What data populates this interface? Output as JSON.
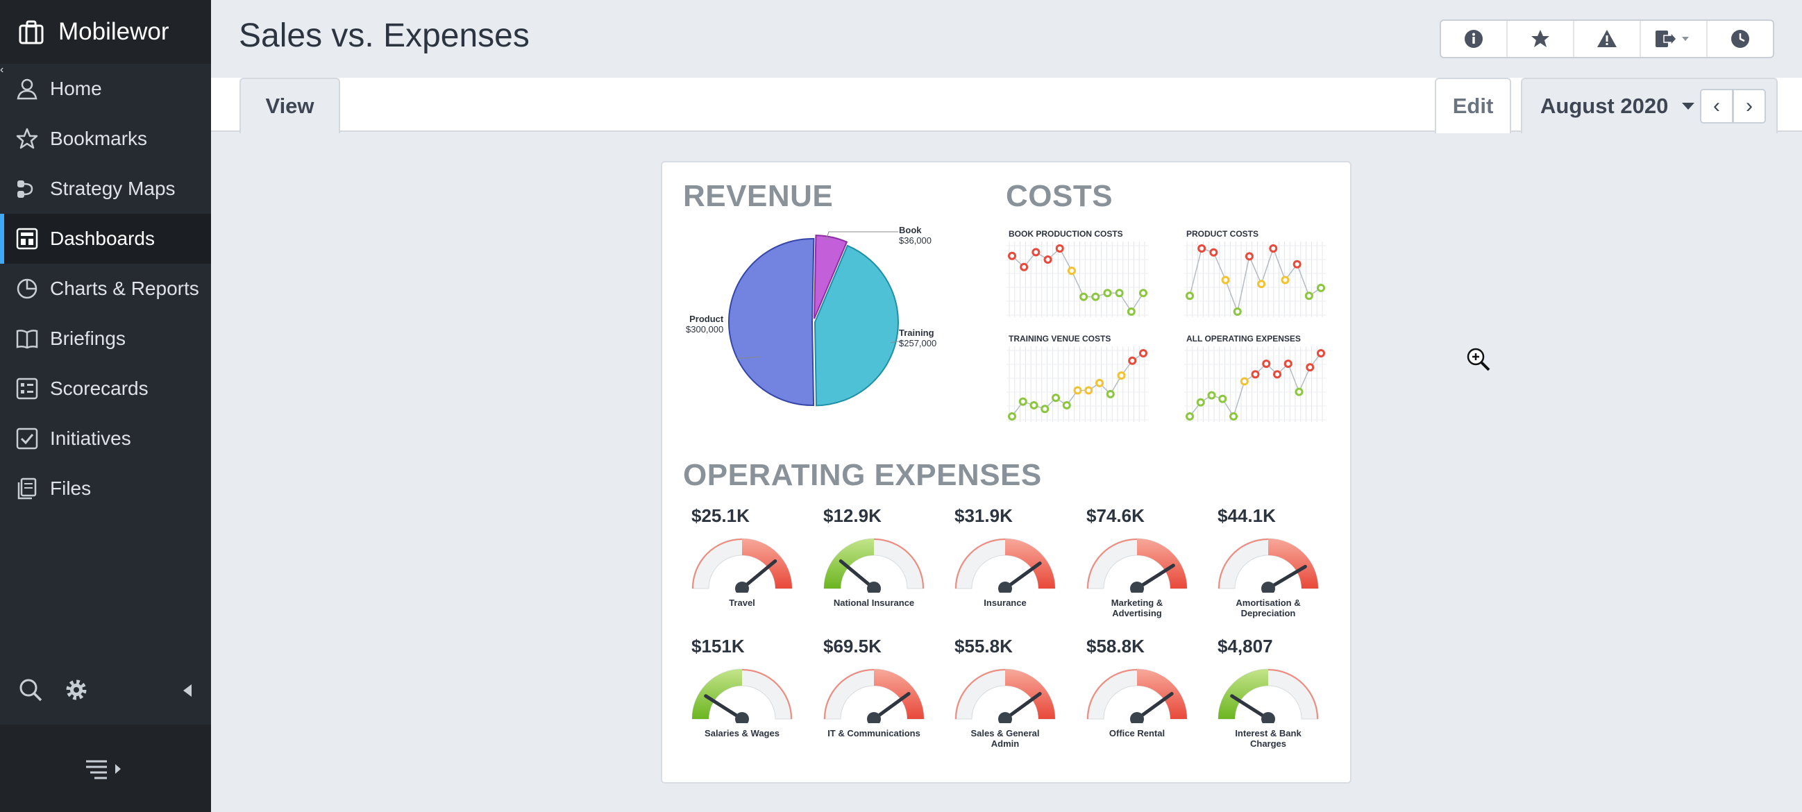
{
  "app": {
    "brand": "Mobilewor",
    "page_title": "Sales vs. Expenses"
  },
  "sidebar": {
    "items": [
      {
        "label": "Home",
        "icon": "user-icon"
      },
      {
        "label": "Bookmarks",
        "icon": "star-icon"
      },
      {
        "label": "Strategy Maps",
        "icon": "strategy-map-icon"
      },
      {
        "label": "Dashboards",
        "icon": "dashboard-icon",
        "active": true
      },
      {
        "label": "Charts & Reports",
        "icon": "pie-chart-icon"
      },
      {
        "label": "Briefings",
        "icon": "book-icon"
      },
      {
        "label": "Scorecards",
        "icon": "scorecard-icon"
      },
      {
        "label": "Initiatives",
        "icon": "checkbox-icon"
      },
      {
        "label": "Files",
        "icon": "files-icon"
      }
    ]
  },
  "tabs": {
    "view": "View",
    "edit": "Edit",
    "period": "August 2020"
  },
  "colors": {
    "sidebar_bg": "#262b31",
    "active_accent": "#3fa9f5",
    "pie_product": "#7283e0",
    "pie_training": "#4fc1d6",
    "pie_book": "#c35fd8",
    "gauge_red": "#e8493a",
    "gauge_green": "#7cc22a"
  },
  "dashboard": {
    "revenue_title": "REVENUE",
    "costs_title": "COSTS",
    "opex_title": "OPERATING EXPENSES",
    "pie": [
      {
        "name": "Product",
        "value_label": "$300,000",
        "value": 300000
      },
      {
        "name": "Training",
        "value_label": "$257,000",
        "value": 257000
      },
      {
        "name": "Book",
        "value_label": "$36,000",
        "value": 36000
      }
    ],
    "sparklines": [
      {
        "title": "BOOK PRODUCTION COSTS",
        "values": [
          8,
          6.5,
          8.5,
          7.5,
          9,
          6,
          2.5,
          2.5,
          3,
          3,
          0.5,
          3
        ]
      },
      {
        "title": "PRODUCT COSTS",
        "values": [
          3,
          9,
          8.5,
          5,
          1,
          8,
          4.5,
          9,
          5,
          7,
          3,
          4
        ]
      },
      {
        "title": "TRAINING VENUE COSTS",
        "values": [
          0.5,
          2.5,
          2,
          1.5,
          3,
          2,
          4,
          4,
          5,
          3.5,
          6,
          8,
          9
        ]
      },
      {
        "title": "ALL OPERATING EXPENSES",
        "values": [
          1,
          3,
          4,
          3.5,
          1,
          6,
          7,
          8.5,
          7,
          8.5,
          4.5,
          8,
          10
        ]
      }
    ],
    "gauges": [
      {
        "value": "$25.1K",
        "label": "Travel",
        "level": 0.78,
        "zone": "red"
      },
      {
        "value": "$12.9K",
        "label": "National Insurance",
        "level": 0.22,
        "zone": "green"
      },
      {
        "value": "$31.9K",
        "label": "Insurance",
        "level": 0.8,
        "zone": "red"
      },
      {
        "value": "$74.6K",
        "label": "Marketing & Advertising",
        "level": 0.82,
        "zone": "red"
      },
      {
        "value": "$44.1K",
        "label": "Amortisation & Depreciation",
        "level": 0.83,
        "zone": "red"
      },
      {
        "value": "$151K",
        "label": "Salaries & Wages",
        "level": 0.18,
        "zone": "green"
      },
      {
        "value": "$69.5K",
        "label": "IT & Communications",
        "level": 0.8,
        "zone": "red"
      },
      {
        "value": "$55.8K",
        "label": "Sales & General Admin",
        "level": 0.8,
        "zone": "red"
      },
      {
        "value": "$58.8K",
        "label": "Office Rental",
        "level": 0.8,
        "zone": "red"
      },
      {
        "value": "$4,807",
        "label": "Interest & Bank Charges",
        "level": 0.18,
        "zone": "green"
      }
    ]
  }
}
